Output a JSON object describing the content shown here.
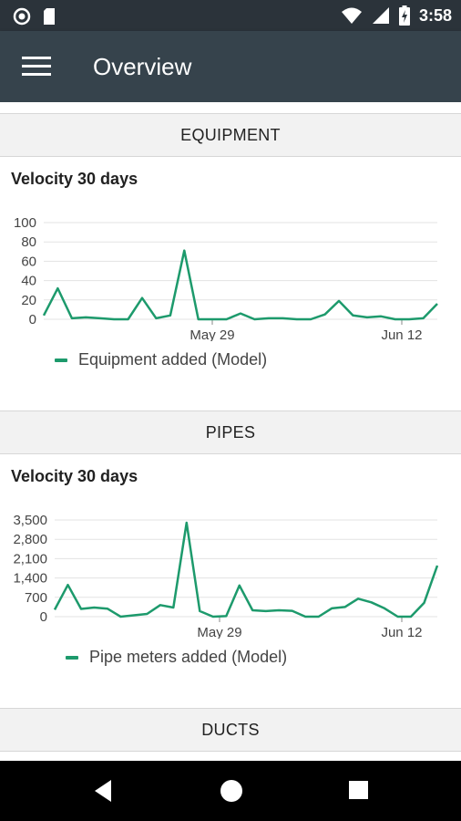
{
  "status_bar": {
    "time": "3:58",
    "icons": [
      "circle-notification-icon",
      "sd-card-icon",
      "wifi-icon",
      "signal-icon",
      "battery-charging-icon"
    ]
  },
  "app_bar": {
    "title": "Overview",
    "menu_icon": "hamburger-menu-icon"
  },
  "sections": [
    {
      "header": "EQUIPMENT",
      "card_title": "Velocity 30 days"
    },
    {
      "header": "PIPES",
      "card_title": "Velocity 30 days"
    },
    {
      "header": "DUCTS"
    }
  ],
  "colors": {
    "series": "#1d9a6c",
    "app_bar": "#36434c",
    "status_bar": "#2b333a"
  },
  "chart_data": [
    {
      "type": "line",
      "title": "Velocity 30 days",
      "x_tick_labels": [
        "May 29",
        "Jun 12"
      ],
      "y_ticks": [
        "100",
        "80",
        "60",
        "40",
        "20",
        "0"
      ],
      "ylim": [
        0,
        100
      ],
      "series": [
        {
          "name": "Equipment added (Model)",
          "values": [
            4,
            32,
            1,
            2,
            1,
            0,
            0,
            22,
            1,
            4,
            71,
            0,
            0,
            0,
            6,
            0,
            1,
            1,
            0,
            0,
            5,
            19,
            4,
            2,
            3,
            0,
            0,
            1,
            16
          ]
        }
      ],
      "legend": "bottom-left"
    },
    {
      "type": "line",
      "title": "Velocity 30 days",
      "x_tick_labels": [
        "May 29",
        "Jun 12"
      ],
      "y_ticks": [
        "3,500",
        "2,800",
        "2,100",
        "1,400",
        "700",
        "0"
      ],
      "ylim": [
        0,
        3500
      ],
      "series": [
        {
          "name": "Pipe meters added (Model)",
          "values": [
            250,
            1150,
            280,
            330,
            290,
            0,
            50,
            100,
            420,
            330,
            3400,
            200,
            0,
            20,
            1130,
            230,
            200,
            230,
            210,
            0,
            0,
            300,
            350,
            650,
            520,
            300,
            0,
            0,
            500,
            1850
          ]
        }
      ],
      "legend": "bottom-left"
    }
  ]
}
